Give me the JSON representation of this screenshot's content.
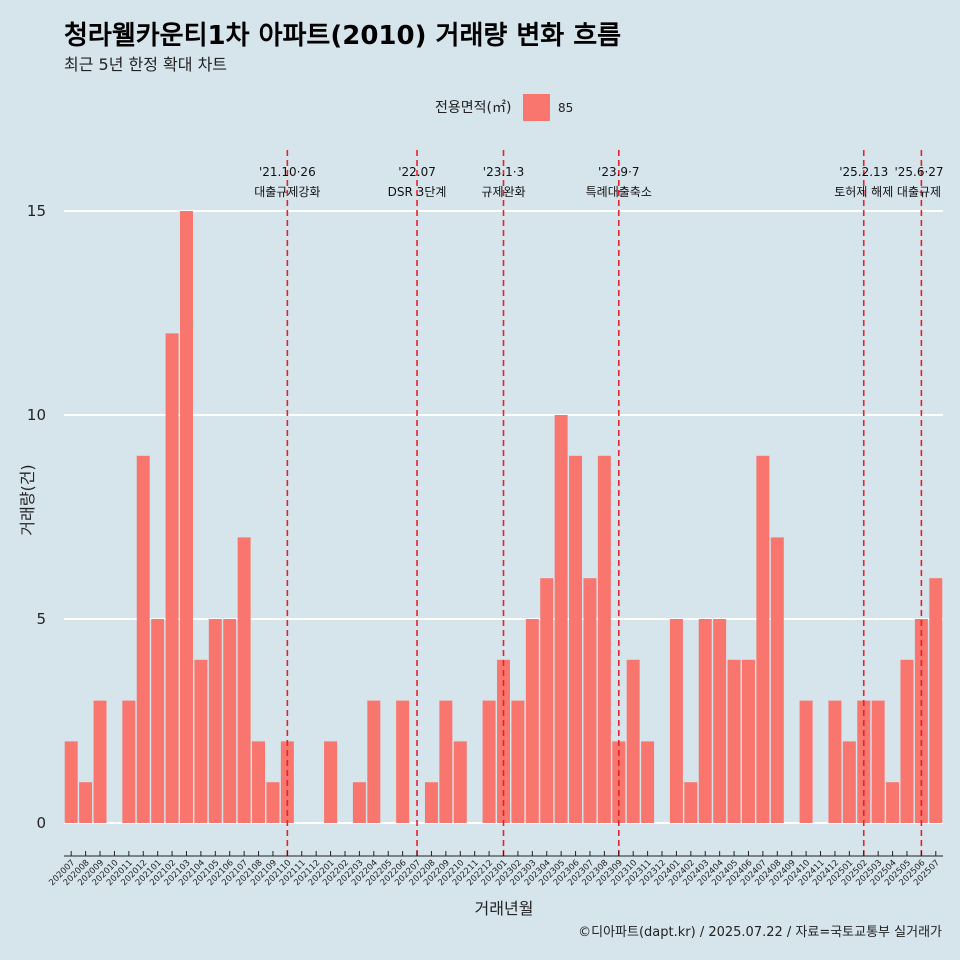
{
  "title": "청라웰카운티1차 아파트(2010) 거래량 변화 흐름",
  "subtitle": "최근 5년 한정 확대 차트",
  "caption": "©디아파트(dapt.kr) / 2025.07.22 / 자료=국토교통부 실거래가",
  "colors": {
    "background": "#d6e4ec",
    "bar": "#f8766d",
    "event_line": "#e8202a",
    "grid": "#ffffff"
  },
  "chart_data": {
    "type": "bar",
    "xlabel": "거래년월",
    "ylabel": "거래량(건)",
    "ylim": [
      0,
      16.5
    ],
    "yticks": [
      0,
      5,
      10,
      15
    ],
    "grid": true,
    "legend": {
      "title": "전용면적(㎡)",
      "position": "top",
      "entries": [
        "85"
      ]
    },
    "categories": [
      "202007",
      "202008",
      "202009",
      "202010",
      "202011",
      "202012",
      "202101",
      "202102",
      "202103",
      "202104",
      "202105",
      "202106",
      "202107",
      "202108",
      "202109",
      "202110",
      "202111",
      "202112",
      "202201",
      "202202",
      "202203",
      "202204",
      "202205",
      "202206",
      "202207",
      "202208",
      "202209",
      "202210",
      "202211",
      "202212",
      "202301",
      "202302",
      "202303",
      "202304",
      "202305",
      "202306",
      "202307",
      "202308",
      "202309",
      "202310",
      "202311",
      "202312",
      "202401",
      "202402",
      "202403",
      "202404",
      "202405",
      "202406",
      "202407",
      "202408",
      "202409",
      "202410",
      "202411",
      "202412",
      "202501",
      "202502",
      "202503",
      "202504",
      "202505",
      "202506",
      "202507"
    ],
    "series": [
      {
        "name": "85",
        "values": [
          2,
          1,
          3,
          0,
          3,
          9,
          5,
          12,
          15,
          4,
          5,
          5,
          7,
          2,
          1,
          2,
          0,
          0,
          2,
          0,
          1,
          3,
          0,
          3,
          0,
          1,
          3,
          2,
          0,
          3,
          4,
          3,
          5,
          6,
          10,
          9,
          6,
          9,
          2,
          4,
          2,
          0,
          5,
          1,
          5,
          5,
          4,
          4,
          9,
          7,
          0,
          3,
          0,
          3,
          2,
          3,
          3,
          1,
          4,
          5,
          6
        ]
      }
    ],
    "annotations": [
      {
        "x": "202110",
        "date": "'21.10·26",
        "label": "대출규제강화"
      },
      {
        "x": "202207",
        "date": "'22.07",
        "label": "DSR 3단계"
      },
      {
        "x": "202301",
        "date": "'23.1·3",
        "label": "규제완화"
      },
      {
        "x": "202309",
        "date": "'23.9·7",
        "label": "특례대출축소"
      },
      {
        "x": "202502",
        "date": "'25.2.13",
        "label": "토허제 해제"
      },
      {
        "x": "202506",
        "date": "'25.6·27",
        "label": "대출규제"
      }
    ]
  }
}
